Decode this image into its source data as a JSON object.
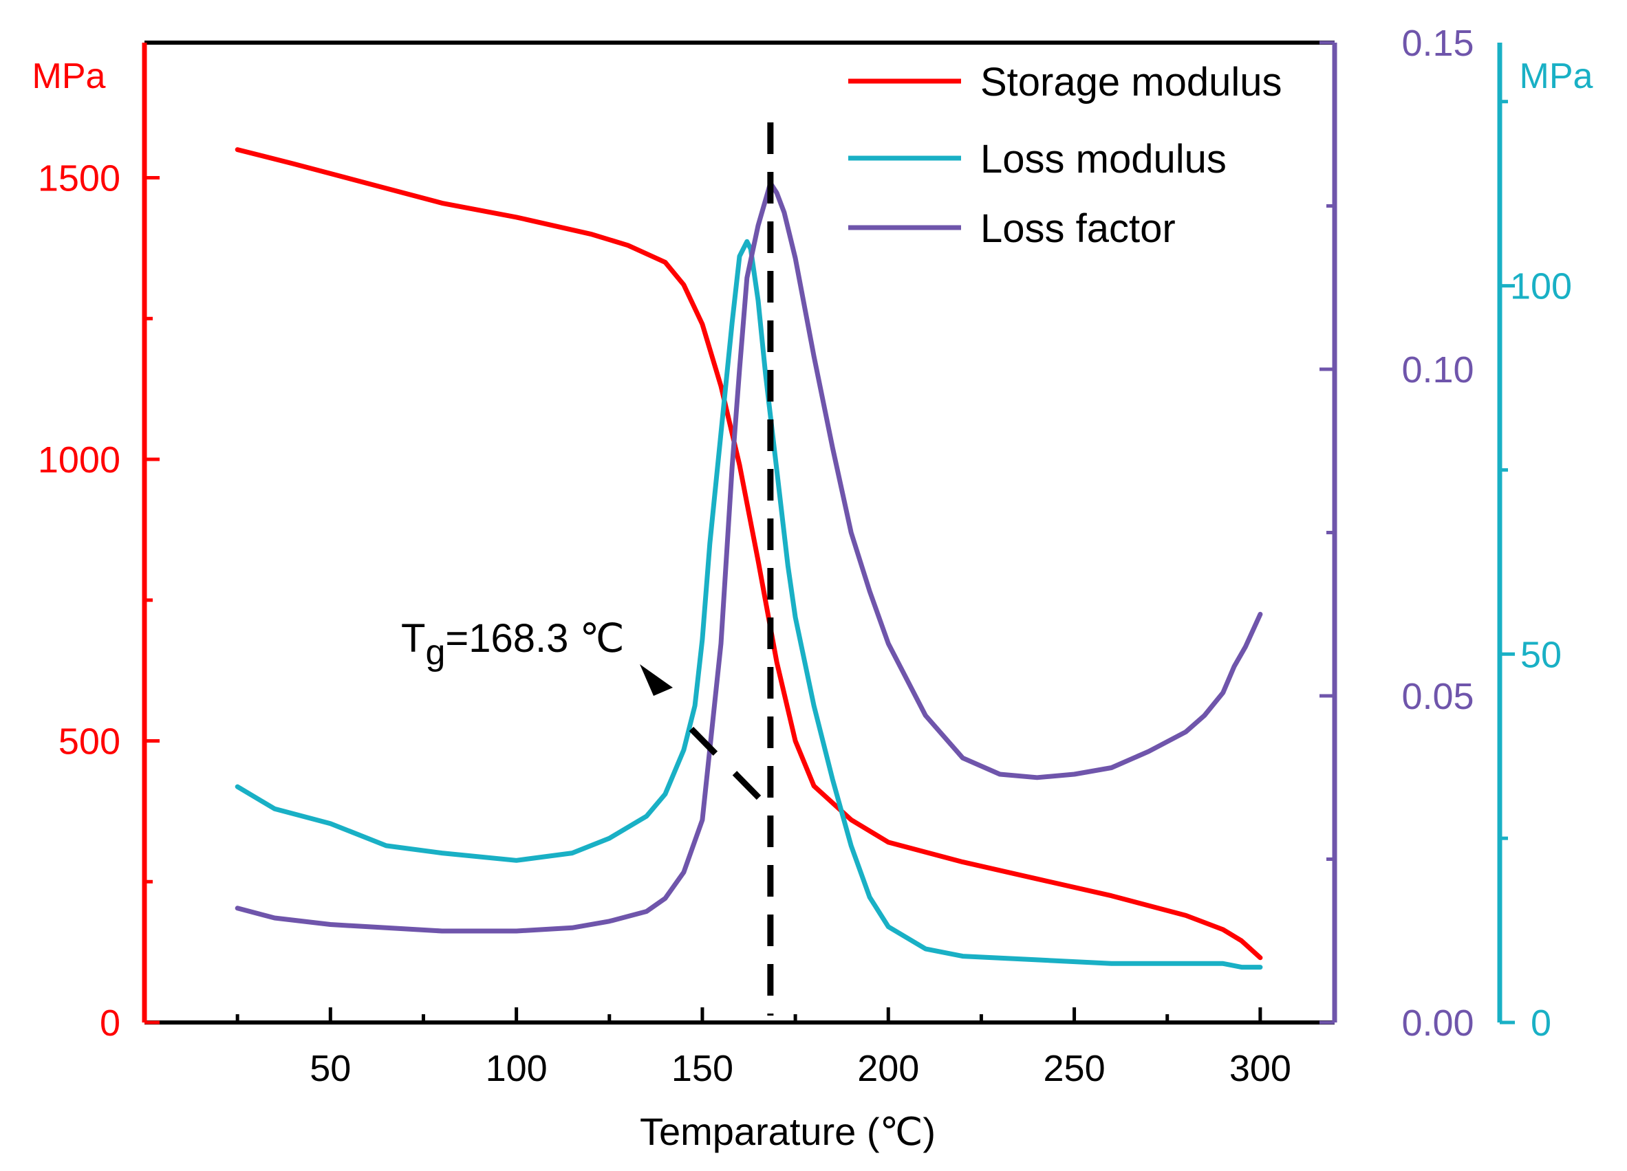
{
  "chart_data": {
    "type": "line",
    "title": "",
    "xlabel": "Temparature (℃)",
    "xlim": [
      0,
      320
    ],
    "xticks": [
      50,
      100,
      150,
      200,
      250,
      300
    ],
    "axes": {
      "left": {
        "unit": "MPa",
        "ylim": [
          0,
          1740
        ],
        "ticks": [
          0,
          500,
          1000,
          1500
        ],
        "color": "#ff0000"
      },
      "right_factor": {
        "ylim": [
          0,
          0.15
        ],
        "ticks": [
          "0.00",
          "0.05",
          "0.10",
          "0.15"
        ],
        "color": "#6f55ab"
      },
      "right_loss": {
        "unit": "MPa",
        "ylim": [
          0,
          133
        ],
        "ticks": [
          0,
          50,
          100
        ],
        "color": "#19b0c5"
      }
    },
    "series": [
      {
        "name": "Storage modulus",
        "axis": "left",
        "color": "#ff0000",
        "x": [
          25,
          40,
          60,
          80,
          100,
          120,
          130,
          140,
          145,
          150,
          155,
          160,
          165,
          170,
          175,
          180,
          190,
          200,
          220,
          240,
          260,
          280,
          290,
          295,
          300
        ],
        "y": [
          1550,
          1525,
          1490,
          1455,
          1430,
          1400,
          1380,
          1350,
          1310,
          1240,
          1130,
          990,
          820,
          640,
          500,
          420,
          360,
          320,
          285,
          255,
          225,
          190,
          165,
          145,
          115
        ]
      },
      {
        "name": "Loss modulus",
        "axis": "right_loss",
        "color": "#19b0c5",
        "x": [
          25,
          35,
          50,
          65,
          80,
          100,
          115,
          125,
          135,
          140,
          145,
          148,
          150,
          152,
          155,
          158,
          160,
          162,
          163,
          165,
          167,
          170,
          173,
          175,
          180,
          185,
          190,
          195,
          200,
          210,
          220,
          240,
          260,
          280,
          290,
          295,
          300
        ],
        "y": [
          32,
          29,
          27,
          24,
          23,
          22,
          23,
          25,
          28,
          31,
          37,
          43,
          52,
          65,
          80,
          95,
          104,
          106,
          105,
          98,
          88,
          75,
          62,
          55,
          43,
          33,
          24,
          17,
          13,
          10,
          9,
          8.5,
          8,
          8,
          8,
          7.5,
          7.5
        ]
      },
      {
        "name": "Loss factor",
        "axis": "right_factor",
        "color": "#6f55ab",
        "x": [
          25,
          35,
          50,
          65,
          80,
          100,
          115,
          125,
          135,
          140,
          145,
          150,
          155,
          158,
          160,
          162,
          165,
          168.3,
          170,
          172,
          175,
          180,
          185,
          190,
          195,
          200,
          210,
          220,
          230,
          240,
          250,
          260,
          270,
          280,
          285,
          290,
          293,
          296,
          300
        ],
        "y": [
          0.0175,
          0.016,
          0.015,
          0.0145,
          0.014,
          0.014,
          0.0145,
          0.0155,
          0.017,
          0.019,
          0.023,
          0.031,
          0.058,
          0.085,
          0.1,
          0.114,
          0.122,
          0.1285,
          0.127,
          0.124,
          0.117,
          0.102,
          0.088,
          0.075,
          0.066,
          0.058,
          0.047,
          0.0405,
          0.038,
          0.0375,
          0.038,
          0.039,
          0.0415,
          0.0445,
          0.047,
          0.0505,
          0.0545,
          0.0575,
          0.0625
        ]
      }
    ],
    "legend": {
      "position": "top-right",
      "entries": [
        "Storage modulus",
        "Loss modulus",
        "Loss factor"
      ]
    },
    "annotations": {
      "tg_value_x": 168.3,
      "tg_main": "T",
      "tg_sub": "g",
      "tg_rest": "=168.3 ℃",
      "dash_line_style": "dashed"
    }
  }
}
